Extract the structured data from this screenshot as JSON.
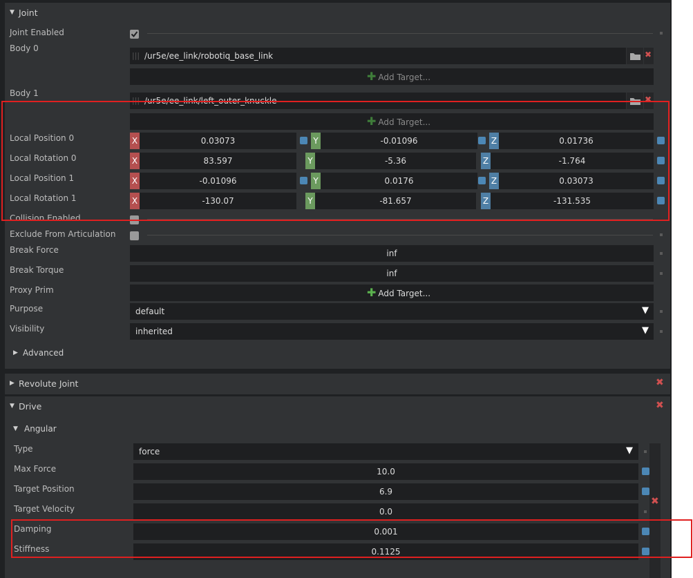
{
  "joint": {
    "header": "Joint",
    "joint_enabled": {
      "label": "Joint Enabled",
      "checked": true
    },
    "body0": {
      "label": "Body 0",
      "path": "/ur5e/ee_link/robotiq_base_link",
      "add_target": "Add Target..."
    },
    "body1": {
      "label": "Body 1",
      "path": "/ur5e/ee_link/left_outer_knuckle",
      "add_target": "Add Target..."
    },
    "vectors": [
      {
        "label": "Local Position 0",
        "x": "0.03073",
        "y": "-0.01096",
        "z": "0.01736"
      },
      {
        "label": "Local Rotation 0",
        "x": "83.597",
        "y": "-5.36",
        "z": "-1.764"
      },
      {
        "label": "Local Position 1",
        "x": "-0.01096",
        "y": "0.0176",
        "z": "0.03073"
      },
      {
        "label": "Local Rotation 1",
        "x": "-130.07",
        "y": "-81.657",
        "z": "-131.535"
      }
    ],
    "axis_labels": {
      "x": "X",
      "y": "Y",
      "z": "Z"
    },
    "collision_enabled": {
      "label": "Collision Enabled"
    },
    "exclude_from_articulation": {
      "label": "Exclude From Articulation"
    },
    "break_force": {
      "label": "Break Force",
      "value": "inf"
    },
    "break_torque": {
      "label": "Break Torque",
      "value": "inf"
    },
    "proxy_prim": {
      "label": "Proxy Prim",
      "add_target": "Add Target..."
    },
    "purpose": {
      "label": "Purpose",
      "value": "default"
    },
    "visibility": {
      "label": "Visibility",
      "value": "inherited"
    },
    "advanced": {
      "label": "Advanced"
    }
  },
  "revolute_joint": {
    "header": "Revolute Joint"
  },
  "drive": {
    "header": "Drive",
    "angular": {
      "header": "Angular",
      "type": {
        "label": "Type",
        "value": "force"
      },
      "max_force": {
        "label": "Max Force",
        "value": "10.0"
      },
      "target_position": {
        "label": "Target Position",
        "value": "6.9"
      },
      "target_velocity": {
        "label": "Target Velocity",
        "value": "0.0"
      },
      "damping": {
        "label": "Damping",
        "value": "0.001"
      },
      "stiffness": {
        "label": "Stiffness",
        "value": "0.1125"
      }
    }
  },
  "colors": {
    "highlight": "#e02020",
    "axis_x": "#b55050",
    "axis_y": "#6b9a5e",
    "axis_z": "#4f7fa5"
  },
  "icons": {
    "folder": "folder-icon",
    "close": "close-icon",
    "plus": "plus-icon",
    "caret": "caret-down-icon"
  }
}
